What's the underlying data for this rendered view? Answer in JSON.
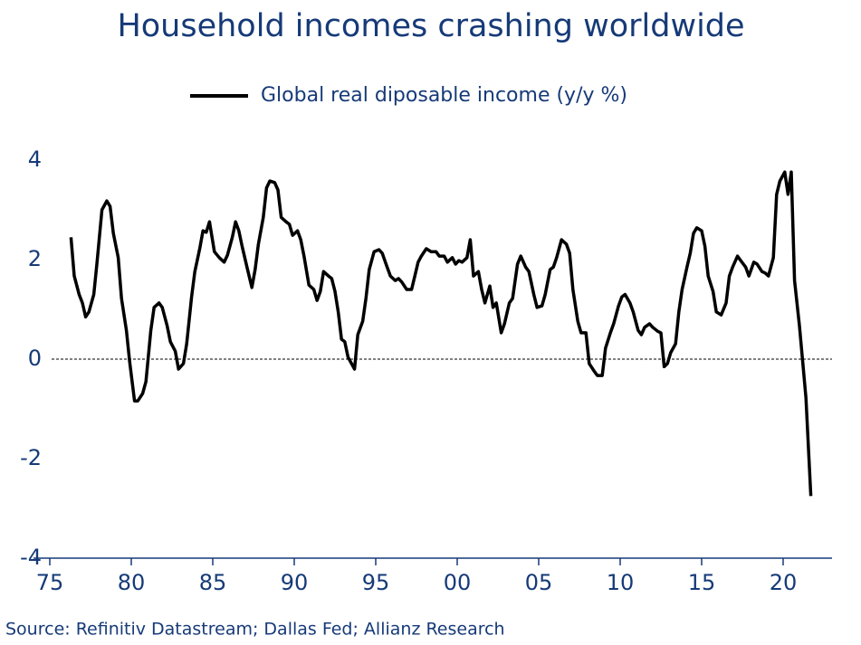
{
  "chart_data": {
    "type": "line",
    "title": "Household incomes crashing worldwide",
    "source": "Source: Refinitiv Datastream; Dallas Fed; Allianz Research",
    "x": [
      1976.3,
      1976.5,
      1976.8,
      1977.0,
      1977.2,
      1977.4,
      1977.7,
      1977.9,
      1978.2,
      1978.5,
      1978.7,
      1978.9,
      1979.2,
      1979.4,
      1979.7,
      1979.9,
      1980.2,
      1980.4,
      1980.7,
      1980.9,
      1981.2,
      1981.4,
      1981.7,
      1981.9,
      1982.2,
      1982.4,
      1982.7,
      1982.9,
      1983.2,
      1983.4,
      1983.7,
      1983.9,
      1984.2,
      1984.4,
      1984.6,
      1984.8,
      1985.1,
      1985.4,
      1985.7,
      1985.9,
      1986.2,
      1986.4,
      1986.6,
      1986.8,
      1987.1,
      1987.4,
      1987.6,
      1987.8,
      1988.1,
      1988.3,
      1988.5,
      1988.8,
      1989.0,
      1989.2,
      1989.5,
      1989.7,
      1989.9,
      1990.2,
      1990.4,
      1990.6,
      1990.9,
      1991.2,
      1991.4,
      1991.6,
      1991.8,
      1992.1,
      1992.3,
      1992.5,
      1992.7,
      1992.9,
      1993.1,
      1993.3,
      1993.7,
      1993.9,
      1994.2,
      1994.4,
      1994.6,
      1994.9,
      1995.2,
      1995.4,
      1995.7,
      1995.9,
      1996.2,
      1996.4,
      1996.6,
      1996.9,
      1997.2,
      1997.4,
      1997.6,
      1997.8,
      1998.1,
      1998.4,
      1998.7,
      1998.9,
      1999.2,
      1999.4,
      1999.7,
      1999.9,
      2000.1,
      2000.3,
      2000.6,
      2000.8,
      2001.0,
      2001.3,
      2001.5,
      2001.7,
      2002.0,
      2002.2,
      2002.4,
      2002.7,
      2002.9,
      2003.2,
      2003.4,
      2003.7,
      2003.9,
      2004.2,
      2004.4,
      2004.7,
      2004.9,
      2005.2,
      2005.4,
      2005.7,
      2005.9,
      2006.1,
      2006.4,
      2006.7,
      2006.9,
      2007.1,
      2007.4,
      2007.6,
      2007.9,
      2008.1,
      2008.4,
      2008.6,
      2008.9,
      2009.1,
      2009.4,
      2009.6,
      2009.9,
      2010.1,
      2010.3,
      2010.6,
      2010.8,
      2011.1,
      2011.3,
      2011.5,
      2011.8,
      2012.0,
      2012.3,
      2012.5,
      2012.7,
      2012.9,
      2013.1,
      2013.4,
      2013.6,
      2013.8,
      2014.1,
      2014.3,
      2014.5,
      2014.7,
      2015.0,
      2015.2,
      2015.4,
      2015.7,
      2015.9,
      2016.2,
      2016.5,
      2016.7,
      2016.9,
      2017.2,
      2017.4,
      2017.7,
      2017.9,
      2018.2,
      2018.4,
      2018.7,
      2018.9,
      2019.1,
      2019.4,
      2019.6,
      2019.8,
      2020.1,
      2020.3,
      2020.5,
      2020.7,
      2021.0,
      2021.2,
      2021.4,
      2021.7
    ],
    "series": [
      {
        "name": "Global real diposable income (y/y %)",
        "color": "#000000",
        "values": [
          2.45,
          1.67,
          1.3,
          1.13,
          0.85,
          0.95,
          1.3,
          1.95,
          3.0,
          3.18,
          3.07,
          2.53,
          2.04,
          1.22,
          0.58,
          -0.05,
          -0.84,
          -0.84,
          -0.69,
          -0.45,
          0.58,
          1.04,
          1.13,
          1.04,
          0.67,
          0.35,
          0.16,
          -0.2,
          -0.09,
          0.31,
          1.25,
          1.76,
          2.22,
          2.58,
          2.55,
          2.76,
          2.16,
          2.04,
          1.95,
          2.09,
          2.45,
          2.76,
          2.58,
          2.27,
          1.85,
          1.44,
          1.8,
          2.31,
          2.85,
          3.44,
          3.58,
          3.55,
          3.4,
          2.85,
          2.76,
          2.71,
          2.49,
          2.58,
          2.4,
          2.07,
          1.49,
          1.4,
          1.18,
          1.36,
          1.76,
          1.67,
          1.62,
          1.36,
          0.95,
          0.4,
          0.35,
          0.04,
          -0.2,
          0.49,
          0.76,
          1.22,
          1.8,
          2.16,
          2.2,
          2.13,
          1.85,
          1.67,
          1.58,
          1.62,
          1.55,
          1.4,
          1.4,
          1.67,
          1.95,
          2.07,
          2.22,
          2.16,
          2.16,
          2.07,
          2.07,
          1.95,
          2.04,
          1.91,
          1.98,
          1.95,
          2.04,
          2.4,
          1.67,
          1.76,
          1.4,
          1.13,
          1.47,
          1.04,
          1.13,
          0.53,
          0.71,
          1.13,
          1.22,
          1.91,
          2.07,
          1.85,
          1.76,
          1.3,
          1.04,
          1.07,
          1.3,
          1.8,
          1.85,
          2.04,
          2.4,
          2.31,
          2.13,
          1.4,
          0.76,
          0.53,
          0.53,
          -0.09,
          -0.24,
          -0.33,
          -0.33,
          0.22,
          0.53,
          0.71,
          1.07,
          1.25,
          1.3,
          1.13,
          0.95,
          0.58,
          0.49,
          0.64,
          0.71,
          0.64,
          0.56,
          0.53,
          -0.15,
          -0.09,
          0.13,
          0.31,
          0.95,
          1.4,
          1.85,
          2.13,
          2.53,
          2.64,
          2.58,
          2.27,
          1.67,
          1.36,
          0.95,
          0.89,
          1.13,
          1.67,
          1.85,
          2.07,
          1.98,
          1.85,
          1.67,
          1.95,
          1.91,
          1.76,
          1.73,
          1.67,
          2.04,
          3.31,
          3.58,
          3.76,
          3.31,
          3.76,
          1.58,
          0.67,
          -0.05,
          -0.78,
          -2.75
        ]
      }
    ],
    "xlim": [
      1974,
      2023
    ],
    "xticks": [
      {
        "value": 1975,
        "label": "75"
      },
      {
        "value": 1980,
        "label": "80"
      },
      {
        "value": 1985,
        "label": "85"
      },
      {
        "value": 1990,
        "label": "90"
      },
      {
        "value": 1995,
        "label": "95"
      },
      {
        "value": 2000,
        "label": "00"
      },
      {
        "value": 2005,
        "label": "05"
      },
      {
        "value": 2010,
        "label": "10"
      },
      {
        "value": 2015,
        "label": "15"
      },
      {
        "value": 2020,
        "label": "20"
      }
    ],
    "ylim": [
      -4,
      4
    ],
    "yticks": [
      -4,
      -2,
      0,
      2,
      4
    ],
    "grid": false
  }
}
